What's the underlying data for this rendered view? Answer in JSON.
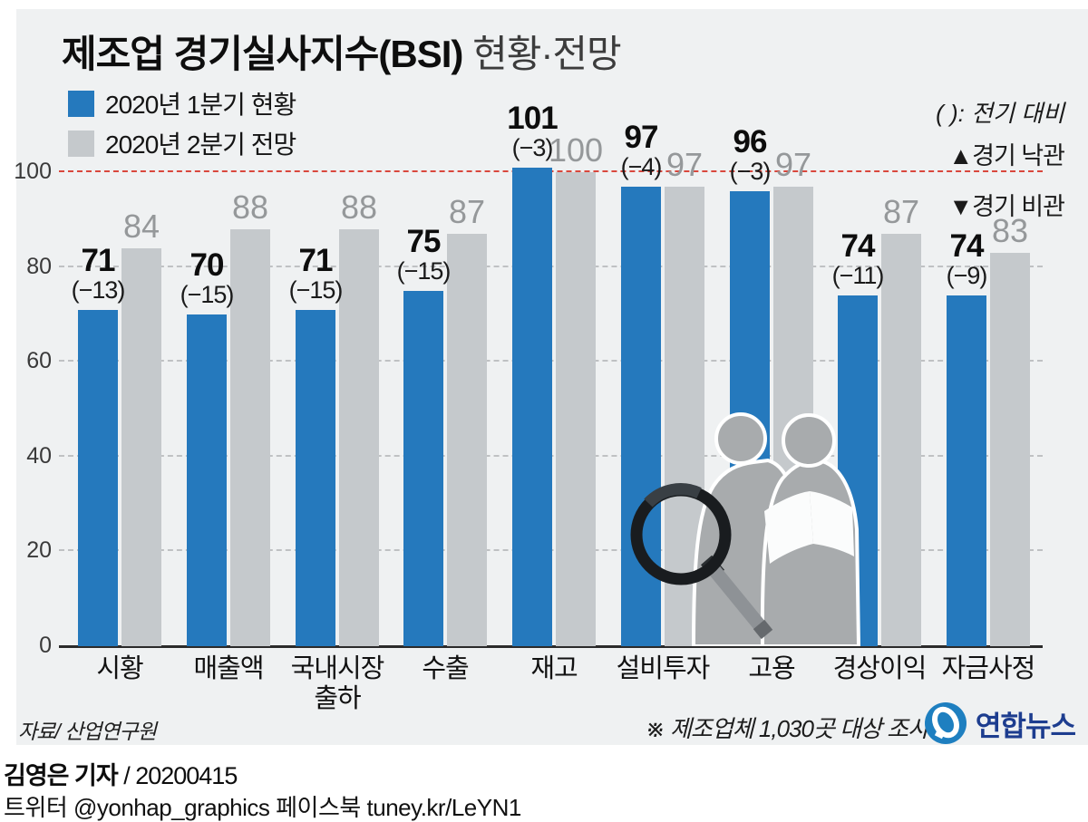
{
  "title": {
    "bold": "제조업 경기실사지수(BSI)",
    "light": " 현황·전망"
  },
  "legend": [
    {
      "label": "2020년 1분기 현황",
      "color": "#2579bd"
    },
    {
      "label": "2020년 2분기 전망",
      "color": "#c5c9cc"
    }
  ],
  "annotations": {
    "paren_note": "( ): 전기 대비",
    "up": "▲경기 낙관",
    "down": "▼경기 비관"
  },
  "chart_data": {
    "type": "bar",
    "categories": [
      "시황",
      "매출액",
      "국내시장\n출하",
      "수출",
      "재고",
      "설비투자",
      "고용",
      "경상이익",
      "자금사정"
    ],
    "series": [
      {
        "name": "2020년 1분기 현황",
        "color": "#2579bd",
        "values": [
          71,
          70,
          71,
          75,
          101,
          97,
          96,
          74,
          74
        ],
        "changes": [
          "(−13)",
          "(−15)",
          "(−15)",
          "(−15)",
          "(−3)",
          "(−4)",
          "(−3)",
          "(−11)",
          "(−9)"
        ]
      },
      {
        "name": "2020년 2분기 전망",
        "color": "#c5c9cc",
        "values": [
          84,
          88,
          88,
          87,
          100,
          97,
          97,
          87,
          83
        ]
      }
    ],
    "ylabel": "",
    "xlabel": "",
    "ylim": [
      0,
      100
    ],
    "yticks": [
      0,
      20,
      40,
      60,
      80,
      100
    ],
    "reference_line": {
      "value": 100,
      "color": "#d9473c"
    },
    "grid": "dashed-horizontal",
    "legend_position": "top-left"
  },
  "source": "자료/ 산업연구원",
  "footnote": "※ 제조업체 1,030곳 대상 조사",
  "logo": {
    "text": "연합뉴스"
  },
  "byline": {
    "author": "김영은 기자",
    "date": " / 20200415"
  },
  "social": "트위터 @yonhap_graphics  페이스북 tuney.kr/LeYN1"
}
